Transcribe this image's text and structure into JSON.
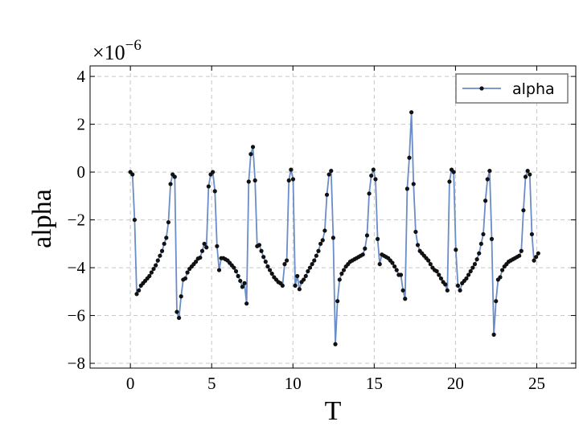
{
  "chart_data": {
    "type": "line",
    "xlabel": "T",
    "ylabel": "alpha",
    "y_multiplier": {
      "base": "×10",
      "exponent": "−6"
    },
    "x": [
      0,
      0.13,
      0.26,
      0.39,
      0.52,
      0.65,
      0.78,
      0.91,
      1.04,
      1.17,
      1.3,
      1.43,
      1.56,
      1.69,
      1.82,
      1.95,
      2.08,
      2.21,
      2.34,
      2.47,
      2.6,
      2.73,
      2.86,
      2.99,
      3.12,
      3.25,
      3.38,
      3.51,
      3.64,
      3.77,
      3.9,
      4.03,
      4.16,
      4.29,
      4.42,
      4.55,
      4.68,
      4.81,
      4.94,
      5.07,
      5.2,
      5.33,
      5.46,
      5.59,
      5.72,
      5.85,
      5.98,
      6.11,
      6.24,
      6.37,
      6.5,
      6.63,
      6.76,
      6.89,
      7.02,
      7.15,
      7.28,
      7.41,
      7.54,
      7.67,
      7.8,
      7.93,
      8.06,
      8.19,
      8.32,
      8.45,
      8.58,
      8.71,
      8.84,
      8.97,
      9.1,
      9.23,
      9.36,
      9.49,
      9.62,
      9.75,
      9.88,
      10.01,
      10.14,
      10.27,
      10.4,
      10.53,
      10.66,
      10.79,
      10.92,
      11.05,
      11.18,
      11.31,
      11.44,
      11.57,
      11.7,
      11.83,
      11.96,
      12.09,
      12.22,
      12.35,
      12.48,
      12.61,
      12.74,
      12.87,
      13,
      13.13,
      13.26,
      13.39,
      13.52,
      13.65,
      13.78,
      13.91,
      14.04,
      14.17,
      14.3,
      14.43,
      14.56,
      14.69,
      14.82,
      14.95,
      15.08,
      15.21,
      15.34,
      15.47,
      15.6,
      15.73,
      15.86,
      15.99,
      16.12,
      16.25,
      16.38,
      16.51,
      16.64,
      16.77,
      16.9,
      17.03,
      17.16,
      17.29,
      17.42,
      17.55,
      17.68,
      17.81,
      17.94,
      18.07,
      18.2,
      18.33,
      18.46,
      18.59,
      18.72,
      18.85,
      18.98,
      19.11,
      19.24,
      19.37,
      19.5,
      19.63,
      19.76,
      19.89,
      20.02,
      20.15,
      20.28,
      20.41,
      20.54,
      20.67,
      20.8,
      20.93,
      21.06,
      21.19,
      21.32,
      21.45,
      21.58,
      21.71,
      21.84,
      21.97,
      22.1,
      22.23,
      22.36,
      22.49,
      22.62,
      22.75,
      22.88,
      23.01,
      23.14,
      23.27,
      23.4,
      23.53,
      23.66,
      23.79,
      23.92,
      24.05,
      24.18,
      24.31,
      24.44,
      24.57,
      24.7,
      24.83,
      24.96,
      25.09
    ],
    "series": [
      {
        "name": "alpha",
        "color": "#6a8cc7",
        "marker_color": "#111111",
        "values": [
          0,
          -0.1,
          -2.0,
          -5.1,
          -4.95,
          -4.75,
          -4.65,
          -4.55,
          -4.45,
          -4.35,
          -4.2,
          -4.05,
          -3.9,
          -3.7,
          -3.5,
          -3.3,
          -3.0,
          -2.75,
          -2.1,
          -0.5,
          -0.1,
          -0.2,
          -5.85,
          -6.1,
          -5.2,
          -4.5,
          -4.45,
          -4.2,
          -4.05,
          -3.95,
          -3.85,
          -3.75,
          -3.62,
          -3.58,
          -3.3,
          -3.0,
          -3.15,
          -0.6,
          -0.1,
          0.0,
          -0.8,
          -3.1,
          -4.1,
          -3.6,
          -3.6,
          -3.65,
          -3.7,
          -3.8,
          -3.9,
          -4.0,
          -4.15,
          -4.35,
          -4.55,
          -4.8,
          -4.65,
          -5.5,
          -0.4,
          0.75,
          1.05,
          -0.35,
          -3.1,
          -3.05,
          -3.3,
          -3.55,
          -3.75,
          -3.95,
          -4.1,
          -4.25,
          -4.4,
          -4.5,
          -4.6,
          -4.65,
          -4.75,
          -3.85,
          -3.7,
          -0.35,
          0.1,
          -0.3,
          -4.75,
          -4.35,
          -4.9,
          -4.6,
          -4.5,
          -4.35,
          -4.15,
          -4.0,
          -3.85,
          -3.7,
          -3.5,
          -3.3,
          -3.0,
          -2.85,
          -2.45,
          -0.95,
          -0.1,
          0.05,
          -2.75,
          -7.2,
          -5.4,
          -4.5,
          -4.25,
          -4.1,
          -3.95,
          -3.85,
          -3.75,
          -3.7,
          -3.65,
          -3.6,
          -3.55,
          -3.5,
          -3.45,
          -3.2,
          -2.65,
          -0.9,
          -0.15,
          0.1,
          -0.3,
          -2.8,
          -3.85,
          -3.45,
          -3.5,
          -3.55,
          -3.6,
          -3.7,
          -3.8,
          -3.95,
          -4.1,
          -4.3,
          -4.3,
          -4.95,
          -5.3,
          -0.7,
          0.6,
          2.5,
          -0.5,
          -2.5,
          -3.05,
          -3.3,
          -3.4,
          -3.5,
          -3.6,
          -3.7,
          -3.85,
          -4.0,
          -4.1,
          -4.15,
          -4.3,
          -4.45,
          -4.6,
          -4.7,
          -4.95,
          -0.4,
          0.1,
          0.0,
          -3.25,
          -4.75,
          -4.95,
          -4.65,
          -4.55,
          -4.45,
          -4.3,
          -4.15,
          -4.0,
          -3.85,
          -3.65,
          -3.4,
          -3.0,
          -2.6,
          -1.2,
          -0.3,
          0.05,
          -2.8,
          -6.8,
          -5.4,
          -4.5,
          -4.4,
          -4.1,
          -3.95,
          -3.85,
          -3.75,
          -3.7,
          -3.65,
          -3.6,
          -3.55,
          -3.5,
          -3.3,
          -1.6,
          -0.2,
          0.05,
          -0.1,
          -2.6,
          -3.7,
          -3.55,
          -3.4
        ]
      }
    ],
    "xlim": [
      -2.48,
      27.4
    ],
    "ylim": [
      -8.2,
      4.44
    ],
    "xticks": [
      0,
      5,
      10,
      15,
      20,
      25
    ],
    "yticks": [
      {
        "value": -8,
        "label": "−8"
      },
      {
        "value": -6,
        "label": "−6"
      },
      {
        "value": -4,
        "label": "−4"
      },
      {
        "value": -2,
        "label": "−2"
      },
      0,
      2,
      4
    ],
    "grid": true,
    "legend": "upper right"
  }
}
